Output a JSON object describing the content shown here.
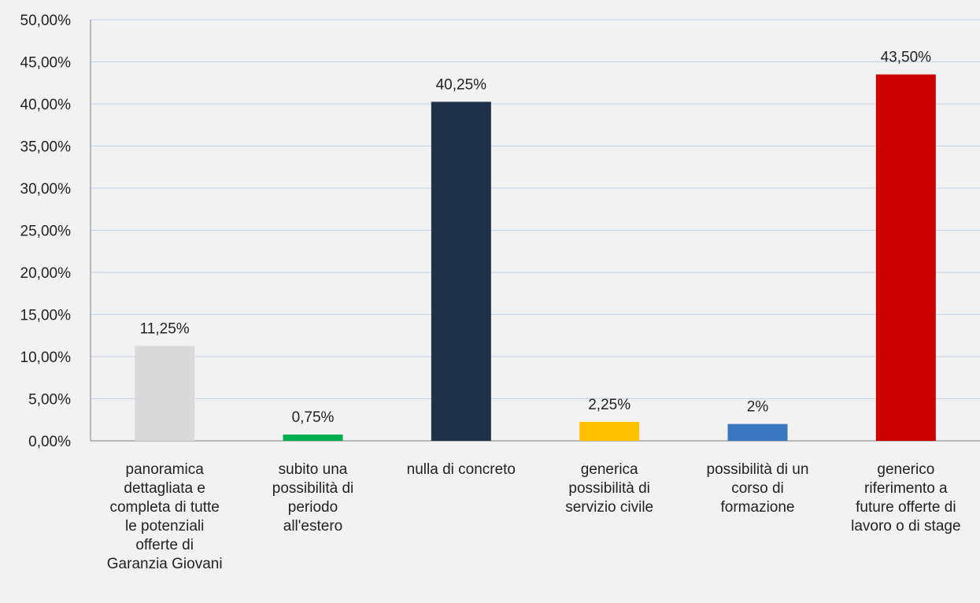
{
  "chart_data": {
    "type": "bar",
    "title": "",
    "xlabel": "",
    "ylabel": "",
    "ylim": [
      0,
      50
    ],
    "y_ticks": [
      {
        "value": 0,
        "label": "0,00%"
      },
      {
        "value": 5,
        "label": "5,00%"
      },
      {
        "value": 10,
        "label": "10,00%"
      },
      {
        "value": 15,
        "label": "15,00%"
      },
      {
        "value": 20,
        "label": "20,00%"
      },
      {
        "value": 25,
        "label": "25,00%"
      },
      {
        "value": 30,
        "label": "30,00%"
      },
      {
        "value": 35,
        "label": "35,00%"
      },
      {
        "value": 40,
        "label": "40,00%"
      },
      {
        "value": 45,
        "label": "45,00%"
      },
      {
        "value": 50,
        "label": "50,00%"
      }
    ],
    "grid": true,
    "legend": "none",
    "categories": [
      [
        "panoramica",
        "dettagliata e",
        "completa di tutte",
        "le potenziali",
        "offerte di",
        "Garanzia Giovani"
      ],
      [
        "subito una",
        "possibilità di",
        "periodo",
        "all'estero"
      ],
      [
        "nulla di concreto"
      ],
      [
        "generica",
        "possibilità di",
        "servizio civile"
      ],
      [
        "possibilità di un",
        "corso di",
        "formazione"
      ],
      [
        "generico",
        "riferimento a",
        "future offerte di",
        "lavoro o di stage"
      ]
    ],
    "values": [
      11.25,
      0.75,
      40.25,
      2.25,
      2,
      43.5
    ],
    "data_labels": [
      "11,25%",
      "0,75%",
      "40,25%",
      "2,25%",
      "2%",
      "43,50%"
    ],
    "colors": [
      "#d9d9d9",
      "#00b050",
      "#1f3049",
      "#ffc000",
      "#3a76c0",
      "#cc0000"
    ],
    "gridline_color": "#c5d3e6",
    "axis_color": "#7f7f7f"
  }
}
